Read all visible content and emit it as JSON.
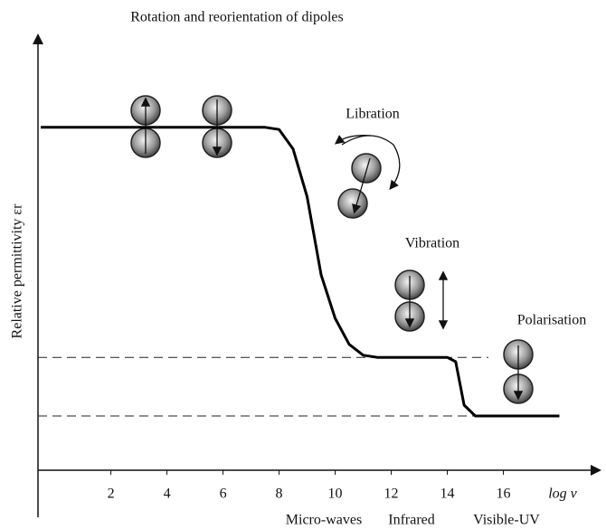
{
  "chart_data": {
    "type": "line",
    "title": "Rotation and reorientation of dipoles",
    "ylabel": "Relative permittivity εr",
    "xlabel": "log ν",
    "annotations": [
      "Libration",
      "Vibration",
      "Polarisation"
    ],
    "regions": [
      "Micro-waves",
      "Infrared",
      "Visible-UV"
    ],
    "xlim": [
      -0.6,
      19.5
    ],
    "xticks": [
      2,
      4,
      6,
      8,
      10,
      12,
      14,
      16
    ],
    "ylim": [
      0,
      10
    ],
    "series": [
      {
        "color": "#000000",
        "x": [
          -0.5,
          7.5,
          8,
          8.5,
          9,
          9.5,
          10,
          10.5,
          11,
          11.5,
          14,
          14.3,
          14.6,
          15,
          18
        ],
        "values": [
          7.9,
          7.9,
          7.85,
          7.4,
          6.3,
          4.5,
          3.5,
          2.9,
          2.65,
          2.6,
          2.6,
          2.5,
          1.5,
          1.25,
          1.25
        ]
      }
    ],
    "hlines": [
      2.6,
      1.25
    ]
  }
}
